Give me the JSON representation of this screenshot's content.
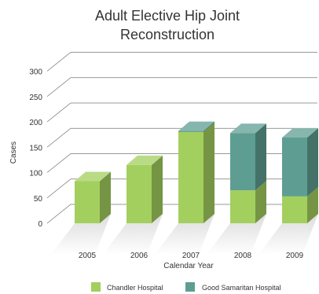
{
  "chart_data": {
    "type": "bar",
    "stacked": true,
    "title": [
      "Adult Elective Hip Joint",
      "Reconstruction"
    ],
    "xlabel": "Calendar Year",
    "ylabel": "Cases",
    "categories": [
      "2005",
      "2006",
      "2007",
      "2008",
      "2009"
    ],
    "ylim": [
      0,
      300
    ],
    "yticks": [
      "0",
      "50",
      "100",
      "150",
      "200",
      "250",
      "300"
    ],
    "grid": true,
    "legend_position": "bottom",
    "series": [
      {
        "name": "Chandler Hospital",
        "values": [
          83,
          115,
          180,
          65,
          53
        ],
        "color": "#a3cf5e"
      },
      {
        "name": "Good Samaritan Hospital",
        "values": [
          0,
          0,
          2,
          113,
          116
        ],
        "color": "#5e9e92"
      }
    ]
  }
}
